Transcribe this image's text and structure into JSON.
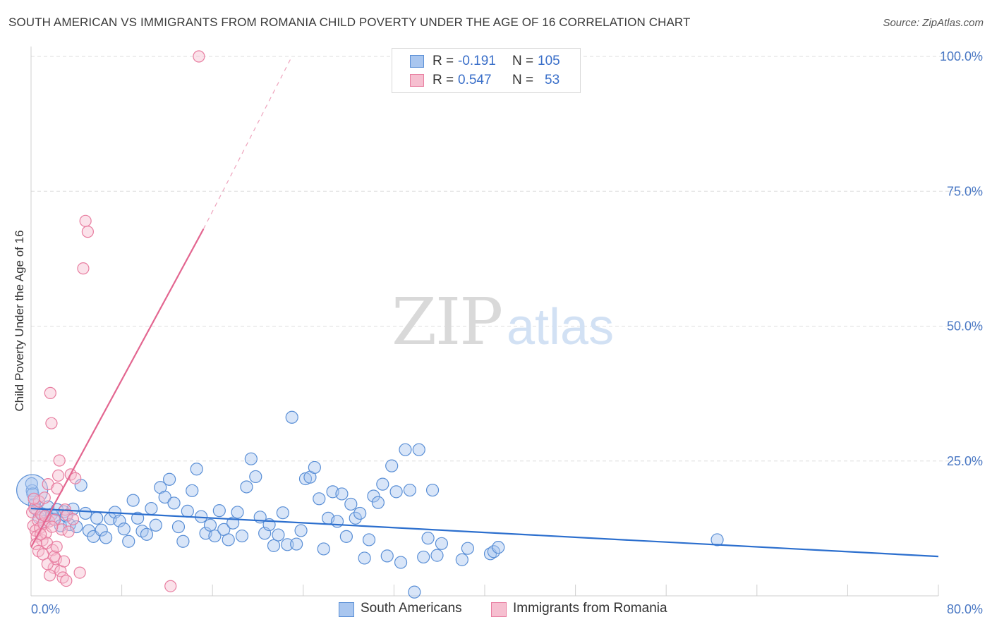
{
  "title": "SOUTH AMERICAN VS IMMIGRANTS FROM ROMANIA CHILD POVERTY UNDER THE AGE OF 16 CORRELATION CHART",
  "source": "Source: ZipAtlas.com",
  "watermark": {
    "zip": "ZIP",
    "atlas": "atlas"
  },
  "legend": {
    "r_label": "R =",
    "n_label": "N =",
    "series": [
      {
        "r": "-0.191",
        "n": "105"
      },
      {
        "r": "0.547",
        "n": "53"
      }
    ]
  },
  "colors": {
    "south_american_fill": "#a9c6ef",
    "south_american_stroke": "#5a8fd6",
    "south_american_line": "#2c6fce",
    "romania_fill": "#f6bfd0",
    "romania_stroke": "#e87da0",
    "romania_line": "#e36690",
    "tick_text": "#4a78c4",
    "grid": "#dedede"
  },
  "chart_data": {
    "type": "scatter",
    "title": "SOUTH AMERICAN VS IMMIGRANTS FROM ROMANIA CHILD POVERTY UNDER THE AGE OF 16 CORRELATION CHART",
    "xlabel": "",
    "ylabel": "Child Poverty Under the Age of 16",
    "xlim": [
      0,
      80
    ],
    "ylim": [
      0,
      100
    ],
    "x_tick_labels": [
      "0.0%",
      "80.0%"
    ],
    "y_ticks": [
      25,
      50,
      75,
      100
    ],
    "y_tick_labels": [
      "25.0%",
      "50.0%",
      "75.0%",
      "100.0%"
    ],
    "grid": true,
    "series": [
      {
        "name": "South Americans",
        "r": -0.191,
        "n": 105,
        "trend": {
          "x": [
            0,
            80
          ],
          "y": [
            16.2,
            7.3
          ]
        },
        "points": [
          [
            0.1,
            19.5
          ],
          [
            0.3,
            17.0
          ],
          [
            0.5,
            16.0
          ],
          [
            0.7,
            14.5
          ],
          [
            1.0,
            15.2
          ],
          [
            1.2,
            13.8
          ],
          [
            1.5,
            16.5
          ],
          [
            1.8,
            15.1
          ],
          [
            2.0,
            14.2
          ],
          [
            2.3,
            16.0
          ],
          [
            2.6,
            13.0
          ],
          [
            2.9,
            15.6
          ],
          [
            3.1,
            14.8
          ],
          [
            3.4,
            13.2
          ],
          [
            3.7,
            16.1
          ],
          [
            4.0,
            12.8
          ],
          [
            4.4,
            20.5
          ],
          [
            4.8,
            15.3
          ],
          [
            5.1,
            12.1
          ],
          [
            5.5,
            11.0
          ],
          [
            5.8,
            14.4
          ],
          [
            6.2,
            12.2
          ],
          [
            6.6,
            10.8
          ],
          [
            7.0,
            14.3
          ],
          [
            7.4,
            15.5
          ],
          [
            7.8,
            13.9
          ],
          [
            8.2,
            12.4
          ],
          [
            8.6,
            10.1
          ],
          [
            9.0,
            17.7
          ],
          [
            9.4,
            14.4
          ],
          [
            9.8,
            12.0
          ],
          [
            10.2,
            11.4
          ],
          [
            10.6,
            16.2
          ],
          [
            11.0,
            13.1
          ],
          [
            11.4,
            20.1
          ],
          [
            11.8,
            18.3
          ],
          [
            12.2,
            21.6
          ],
          [
            12.6,
            17.2
          ],
          [
            13.0,
            12.8
          ],
          [
            13.4,
            10.1
          ],
          [
            13.8,
            15.7
          ],
          [
            14.2,
            19.5
          ],
          [
            14.6,
            23.5
          ],
          [
            15.0,
            14.7
          ],
          [
            15.4,
            11.6
          ],
          [
            15.8,
            13.1
          ],
          [
            16.2,
            11.1
          ],
          [
            16.6,
            15.8
          ],
          [
            17.0,
            12.3
          ],
          [
            17.4,
            10.4
          ],
          [
            17.8,
            13.5
          ],
          [
            18.2,
            15.5
          ],
          [
            18.6,
            11.1
          ],
          [
            19.0,
            20.2
          ],
          [
            19.4,
            25.4
          ],
          [
            19.8,
            22.1
          ],
          [
            20.2,
            14.6
          ],
          [
            20.6,
            11.6
          ],
          [
            21.0,
            13.2
          ],
          [
            21.4,
            9.3
          ],
          [
            21.8,
            11.3
          ],
          [
            22.2,
            15.4
          ],
          [
            22.6,
            9.5
          ],
          [
            23.0,
            33.1
          ],
          [
            23.4,
            9.6
          ],
          [
            23.8,
            12.1
          ],
          [
            24.2,
            21.7
          ],
          [
            24.6,
            22.0
          ],
          [
            25.0,
            23.8
          ],
          [
            25.4,
            18.0
          ],
          [
            25.8,
            8.7
          ],
          [
            26.2,
            14.4
          ],
          [
            26.6,
            19.3
          ],
          [
            27.0,
            13.8
          ],
          [
            27.4,
            18.9
          ],
          [
            27.8,
            11.0
          ],
          [
            28.2,
            17.0
          ],
          [
            28.6,
            14.4
          ],
          [
            29.0,
            15.3
          ],
          [
            29.4,
            7.0
          ],
          [
            29.8,
            10.4
          ],
          [
            30.2,
            18.5
          ],
          [
            30.6,
            17.3
          ],
          [
            31.0,
            20.7
          ],
          [
            31.4,
            7.4
          ],
          [
            31.8,
            24.1
          ],
          [
            32.2,
            19.3
          ],
          [
            32.6,
            6.2
          ],
          [
            33.0,
            27.1
          ],
          [
            33.4,
            19.6
          ],
          [
            33.8,
            0.7
          ],
          [
            34.2,
            27.1
          ],
          [
            34.6,
            7.2
          ],
          [
            35.0,
            10.7
          ],
          [
            35.4,
            19.6
          ],
          [
            35.8,
            7.5
          ],
          [
            36.2,
            9.7
          ],
          [
            38.0,
            6.7
          ],
          [
            38.5,
            8.8
          ],
          [
            40.5,
            7.8
          ],
          [
            40.8,
            8.2
          ],
          [
            41.2,
            9.0
          ],
          [
            60.5,
            10.4
          ],
          [
            0.05,
            20.8
          ],
          [
            0.15,
            18.9
          ]
        ]
      },
      {
        "name": "Immigrants from Romania",
        "r": 0.547,
        "n": 53,
        "trend": {
          "x": [
            0,
            15.2
          ],
          "y": [
            9.0,
            68.0
          ]
        },
        "trend_dashed": {
          "x": [
            15.2,
            23.0
          ],
          "y": [
            68.0,
            100
          ]
        },
        "points": [
          [
            0.1,
            15.5
          ],
          [
            0.2,
            13.0
          ],
          [
            0.3,
            16.2
          ],
          [
            0.4,
            12.1
          ],
          [
            0.5,
            11.0
          ],
          [
            0.6,
            14.0
          ],
          [
            0.7,
            17.5
          ],
          [
            0.8,
            12.6
          ],
          [
            0.9,
            15.1
          ],
          [
            1.0,
            10.3
          ],
          [
            1.1,
            13.4
          ],
          [
            1.2,
            18.2
          ],
          [
            1.3,
            11.6
          ],
          [
            1.4,
            9.8
          ],
          [
            1.5,
            20.7
          ],
          [
            1.6,
            13.8
          ],
          [
            1.7,
            37.6
          ],
          [
            1.8,
            32.0
          ],
          [
            1.9,
            8.5
          ],
          [
            2.0,
            5.2
          ],
          [
            2.1,
            14.1
          ],
          [
            2.2,
            6.8
          ],
          [
            2.3,
            19.9
          ],
          [
            2.4,
            22.3
          ],
          [
            2.5,
            25.1
          ],
          [
            2.6,
            4.6
          ],
          [
            2.7,
            12.3
          ],
          [
            2.8,
            3.4
          ],
          [
            2.9,
            6.4
          ],
          [
            3.0,
            16.0
          ],
          [
            3.1,
            2.8
          ],
          [
            3.2,
            15.0
          ],
          [
            3.3,
            11.9
          ],
          [
            3.5,
            22.5
          ],
          [
            3.7,
            14.2
          ],
          [
            3.9,
            21.8
          ],
          [
            4.3,
            4.3
          ],
          [
            4.6,
            60.7
          ],
          [
            4.8,
            69.5
          ],
          [
            5.0,
            67.5
          ],
          [
            14.8,
            100.0
          ],
          [
            12.3,
            1.8
          ],
          [
            0.25,
            18.0
          ],
          [
            0.45,
            9.6
          ],
          [
            0.65,
            8.3
          ],
          [
            0.85,
            11.4
          ],
          [
            1.05,
            7.7
          ],
          [
            1.25,
            14.8
          ],
          [
            1.45,
            5.9
          ],
          [
            1.65,
            3.8
          ],
          [
            1.85,
            12.8
          ],
          [
            2.05,
            7.3
          ],
          [
            2.25,
            9.1
          ]
        ]
      }
    ]
  },
  "bottom_legend": [
    "South Americans",
    "Immigrants from Romania"
  ]
}
